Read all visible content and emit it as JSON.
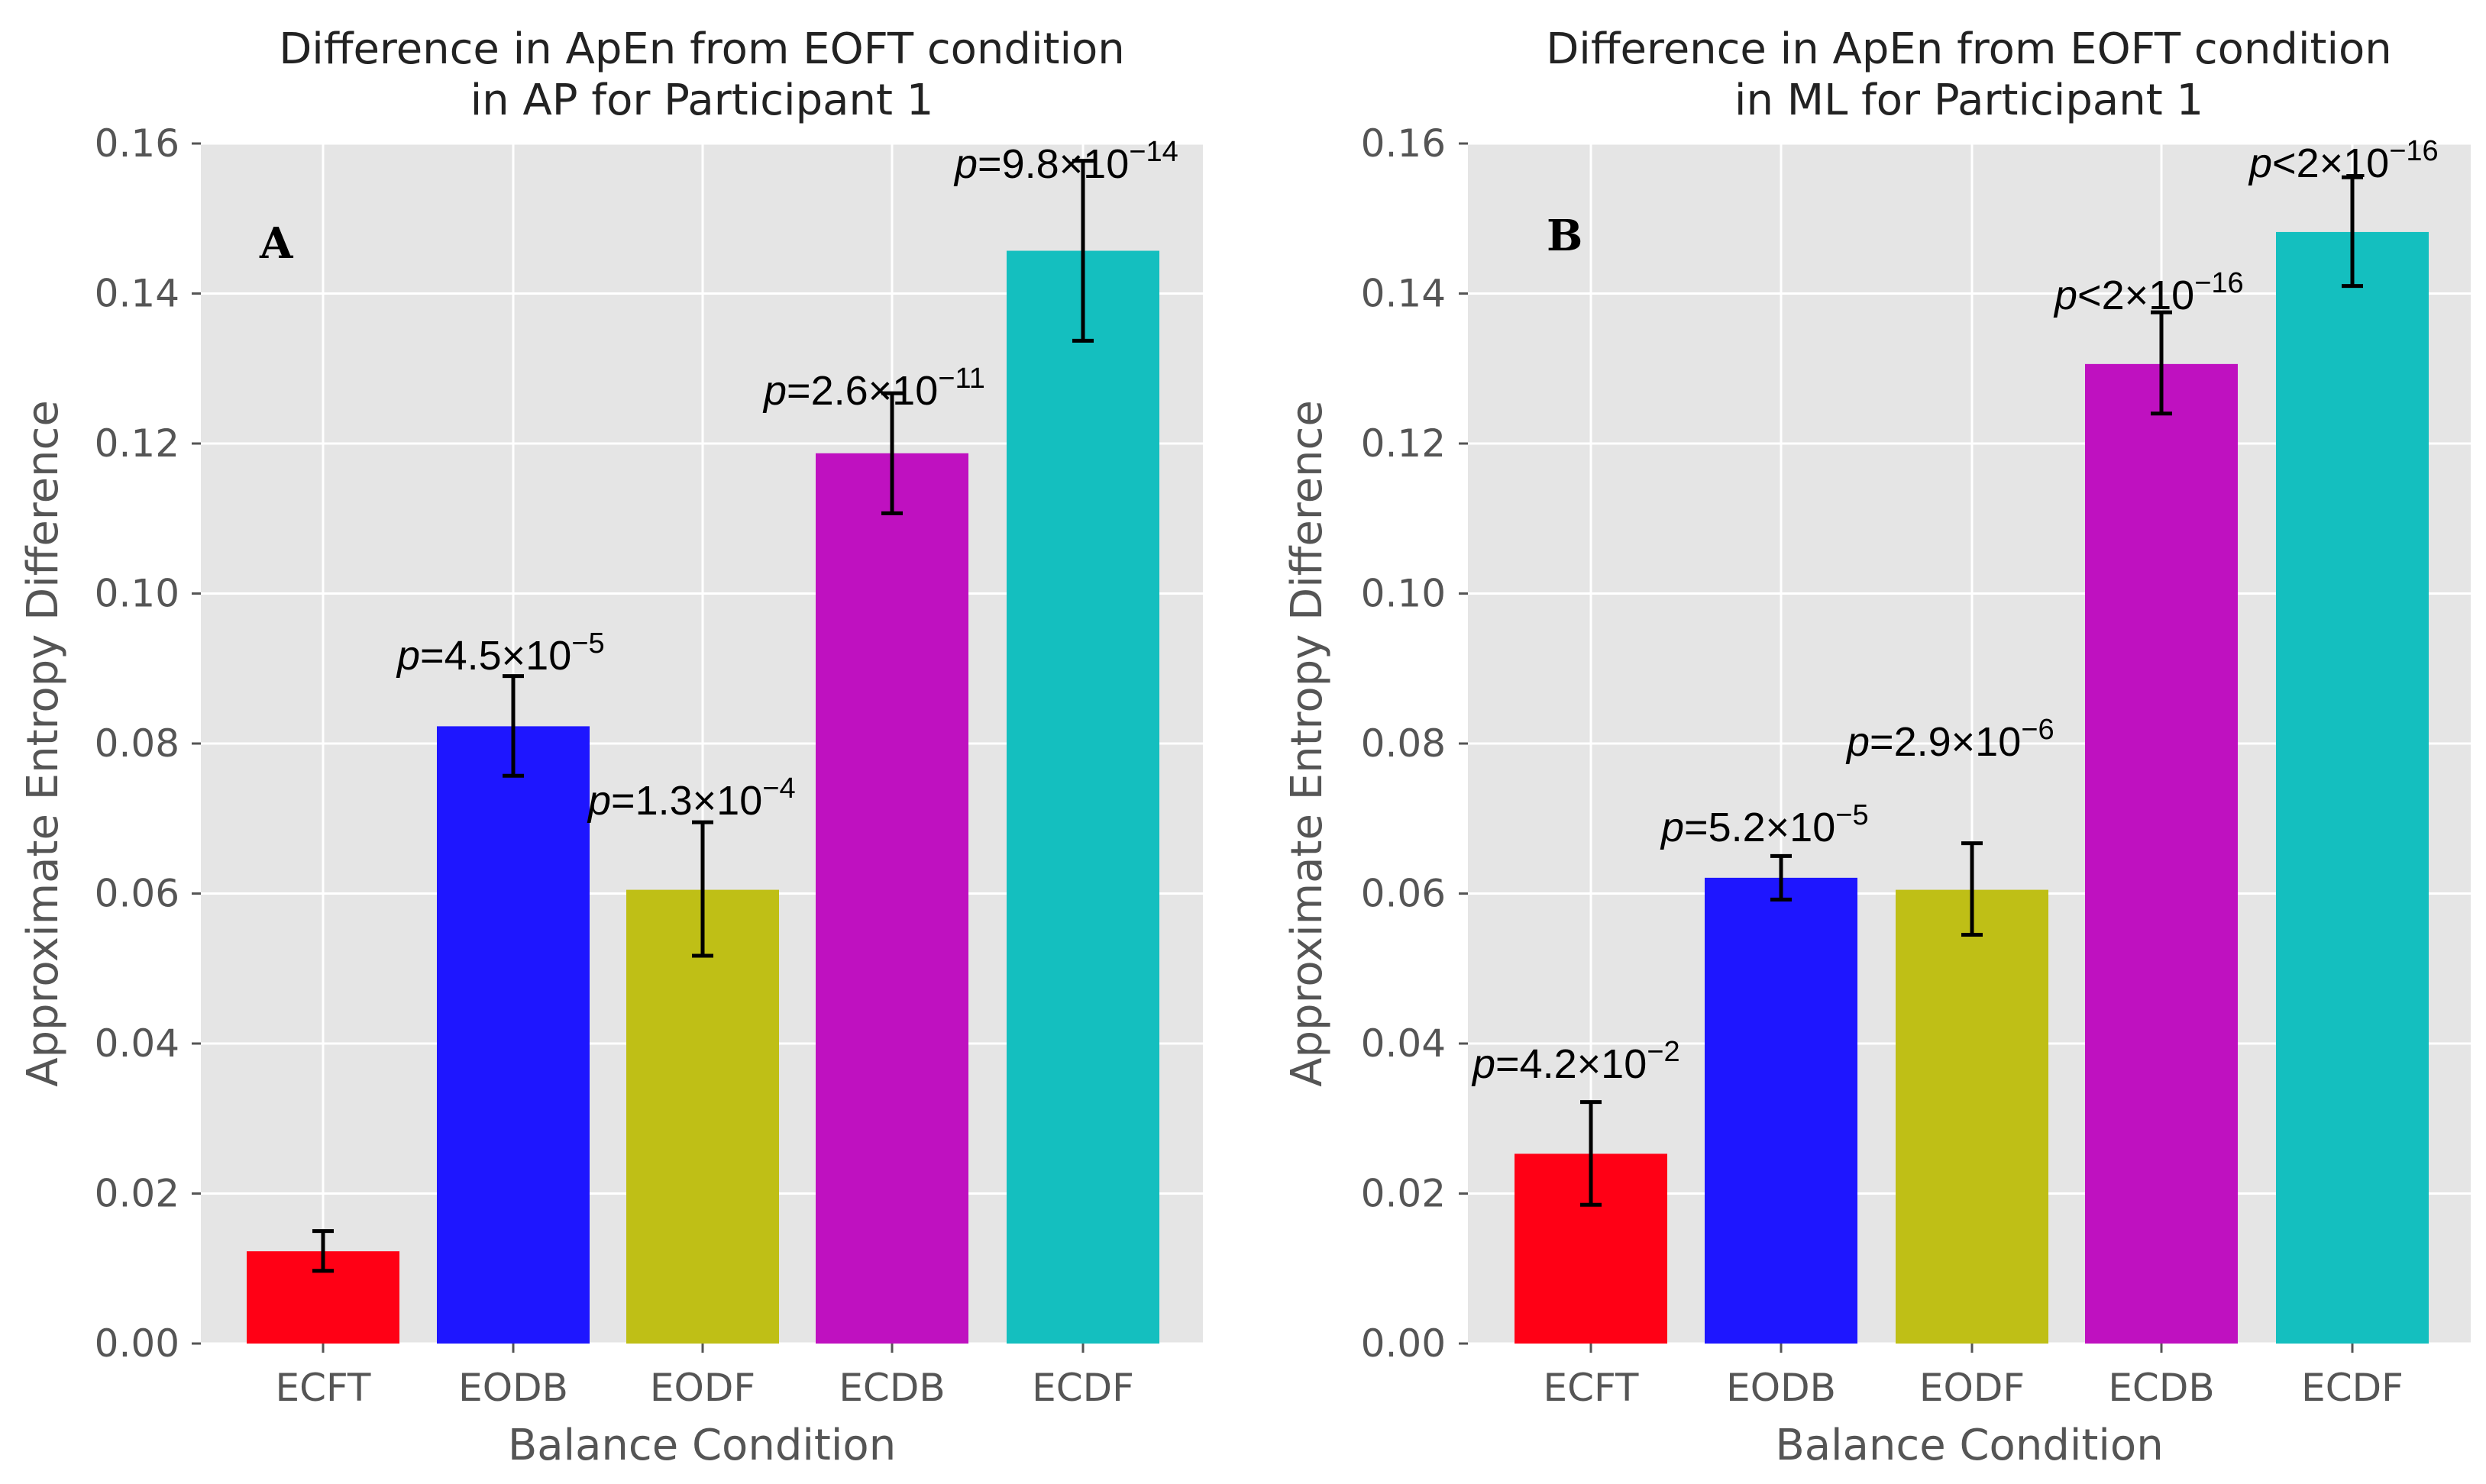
{
  "figure": {
    "background": "#ffffff",
    "plot_background": "#e5e5e5",
    "grid_color": "#ffffff",
    "error_bar_color": "#000000"
  },
  "chart_data": [
    {
      "type": "bar",
      "panel_label": "A",
      "title": [
        "Difference in ApEn from EOFT condition",
        "in AP for Participant 1"
      ],
      "xlabel": "Balance Condition",
      "ylabel": "Approximate Entropy Difference",
      "categories": [
        "ECFT",
        "EODB",
        "EODF",
        "ECDB",
        "ECDF"
      ],
      "colors": [
        "#ff0015",
        "#1e16ff",
        "#bfbf16",
        "#bf11c0",
        "#14bfbf"
      ],
      "values": [
        0.0123,
        0.0823,
        0.0605,
        0.1187,
        0.1457
      ],
      "error_low": [
        0.0097,
        0.0757,
        0.0517,
        0.1107,
        0.1337
      ],
      "error_high": [
        0.015,
        0.089,
        0.0695,
        0.1267,
        0.1577
      ],
      "ylim": [
        0,
        0.16
      ],
      "yticks": [
        "0.00",
        "0.02",
        "0.04",
        "0.06",
        "0.08",
        "0.10",
        "0.12",
        "0.14",
        "0.16"
      ],
      "grid": true,
      "annotations": [
        {
          "prefix": "p",
          "base": "=4.5×10",
          "exponent": "−5"
        },
        {
          "prefix": "p",
          "base": "=1.3×10",
          "exponent": "−4"
        },
        {
          "prefix": "p",
          "base": "=2.6×10",
          "exponent": "−11"
        },
        {
          "prefix": "p",
          "base": "=9.8×10",
          "exponent": "−14"
        }
      ]
    },
    {
      "type": "bar",
      "panel_label": "B",
      "title": [
        "Difference in ApEn from EOFT condition",
        "in ML for Participant 1"
      ],
      "xlabel": "Balance Condition",
      "ylabel": "Approximate Entropy Difference",
      "categories": [
        "ECFT",
        "EODB",
        "EODF",
        "ECDB",
        "ECDF"
      ],
      "colors": [
        "#ff0015",
        "#1e16ff",
        "#bfbf16",
        "#bf11c0",
        "#14bfbf"
      ],
      "values": [
        0.0253,
        0.0621,
        0.0605,
        0.1306,
        0.1482
      ],
      "error_low": [
        0.0185,
        0.0592,
        0.0545,
        0.124,
        0.141
      ],
      "error_high": [
        0.0322,
        0.065,
        0.0667,
        0.1375,
        0.1555
      ],
      "ylim": [
        0,
        0.16
      ],
      "yticks": [
        "0.00",
        "0.02",
        "0.04",
        "0.06",
        "0.08",
        "0.10",
        "0.12",
        "0.14",
        "0.16"
      ],
      "grid": true,
      "annotations": [
        {
          "prefix": "p",
          "base": "=4.2×10",
          "exponent": "−2"
        },
        {
          "prefix": "p",
          "base": "=5.2×10",
          "exponent": "−5"
        },
        {
          "prefix": "p",
          "base": "=2.9×10",
          "exponent": "−6"
        },
        {
          "prefix": "p",
          "base": "<2×10",
          "exponent": "−16"
        },
        {
          "prefix": "p",
          "base": "<2×10",
          "exponent": "−16"
        }
      ]
    }
  ]
}
